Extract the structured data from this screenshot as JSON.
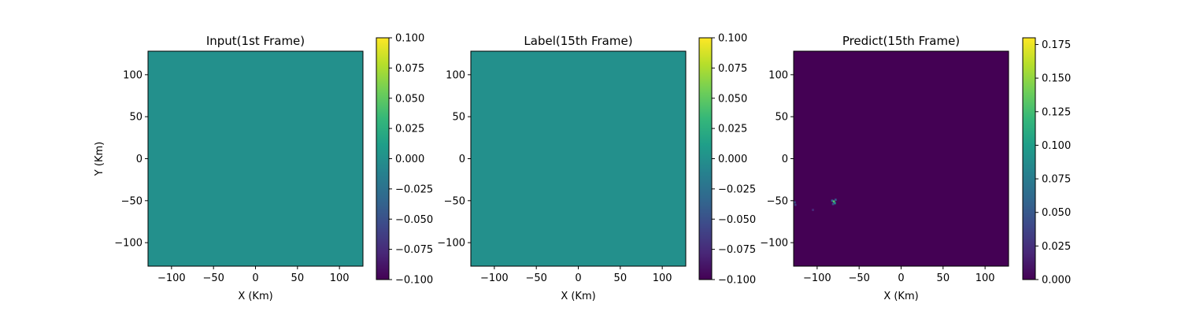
{
  "chart_data": [
    {
      "type": "heatmap",
      "title": "Input(1st Frame)",
      "xlabel": "X (Km)",
      "ylabel": "Y (Km)",
      "xlim": [
        -128,
        128
      ],
      "ylim": [
        -128,
        128
      ],
      "xticks": [
        -100,
        -50,
        0,
        50,
        100
      ],
      "yticks": [
        -100,
        -50,
        0,
        50,
        100
      ],
      "xtick_labels": [
        "−100",
        "−50",
        "0",
        "50",
        "100"
      ],
      "ytick_labels": [
        "−100",
        "−50",
        "0",
        "50",
        "100"
      ],
      "field_value": 0.0,
      "colorbar": {
        "colormap": "viridis",
        "range": [
          -0.1,
          0.1
        ],
        "ticks": [
          -0.1,
          -0.075,
          -0.05,
          -0.025,
          0.0,
          0.025,
          0.05,
          0.075,
          0.1
        ],
        "tick_labels": [
          "−0.100",
          "−0.075",
          "−0.050",
          "−0.025",
          "0.000",
          "0.025",
          "0.050",
          "0.075",
          "0.100"
        ]
      }
    },
    {
      "type": "heatmap",
      "title": "Label(15th Frame)",
      "xlabel": "X (Km)",
      "ylabel": "",
      "xlim": [
        -128,
        128
      ],
      "ylim": [
        -128,
        128
      ],
      "xticks": [
        -100,
        -50,
        0,
        50,
        100
      ],
      "yticks": [
        -100,
        -50,
        0,
        50,
        100
      ],
      "xtick_labels": [
        "−100",
        "−50",
        "0",
        "50",
        "100"
      ],
      "ytick_labels": [
        "−100",
        "−50",
        "0",
        "50",
        "100"
      ],
      "field_value": 0.0,
      "colorbar": {
        "colormap": "viridis",
        "range": [
          -0.1,
          0.1
        ],
        "ticks": [
          -0.1,
          -0.075,
          -0.05,
          -0.025,
          0.0,
          0.025,
          0.05,
          0.075,
          0.1
        ],
        "tick_labels": [
          "−0.100",
          "−0.075",
          "−0.050",
          "−0.025",
          "0.000",
          "0.025",
          "0.050",
          "0.075",
          "0.100"
        ]
      }
    },
    {
      "type": "heatmap",
      "title": "Predict(15th Frame)",
      "xlabel": "X (Km)",
      "ylabel": "",
      "xlim": [
        -128,
        128
      ],
      "ylim": [
        -128,
        128
      ],
      "xticks": [
        -100,
        -50,
        0,
        50,
        100
      ],
      "yticks": [
        -100,
        -50,
        0,
        50,
        100
      ],
      "xtick_labels": [
        "−100",
        "−50",
        "0",
        "50",
        "100"
      ],
      "ytick_labels": [
        "−100",
        "−50",
        "0",
        "50",
        "100"
      ],
      "field_value": 0.0,
      "hotspots": [
        {
          "x": -82,
          "y": -50,
          "value": 0.06
        },
        {
          "x": -80,
          "y": -51,
          "value": 0.13
        },
        {
          "x": -79,
          "y": -53,
          "value": 0.09
        },
        {
          "x": -78,
          "y": -49,
          "value": 0.05
        },
        {
          "x": -81,
          "y": -54,
          "value": 0.04
        },
        {
          "x": -127,
          "y": -52,
          "value": 0.05
        },
        {
          "x": -126,
          "y": -55,
          "value": 0.03
        },
        {
          "x": -105,
          "y": -61,
          "value": 0.02
        }
      ],
      "colorbar": {
        "colormap": "viridis",
        "range": [
          0.0,
          0.18
        ],
        "ticks": [
          0.0,
          0.025,
          0.05,
          0.075,
          0.1,
          0.125,
          0.15,
          0.175
        ],
        "tick_labels": [
          "0.000",
          "0.025",
          "0.050",
          "0.075",
          "0.100",
          "0.125",
          "0.150",
          "0.175"
        ]
      }
    }
  ]
}
